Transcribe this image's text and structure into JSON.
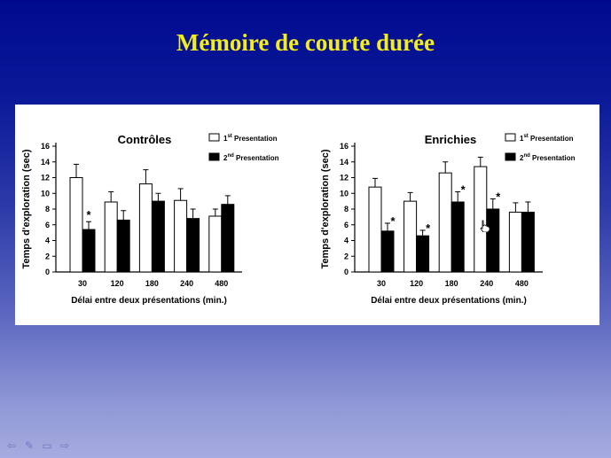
{
  "slide": {
    "title": "Mémoire de courte durée"
  },
  "nav": {
    "icons": [
      "arrow-left-icon",
      "pen-icon",
      "screen-icon",
      "arrow-right-icon"
    ]
  },
  "chart_data": [
    {
      "type": "bar",
      "title": "Contrôles",
      "xlabel": "Délai entre deux présentations (min.)",
      "ylabel": "Temps d'exploration (sec)",
      "ylim": [
        0,
        16
      ],
      "yticks": [
        "0",
        "2",
        "4",
        "6",
        "8",
        "10",
        "12",
        "14",
        "16"
      ],
      "categories": [
        "30",
        "120",
        "180",
        "240",
        "480"
      ],
      "legend_position": "top-right",
      "series": [
        {
          "name_prefix": "1",
          "name_sup": "st",
          "name_suffix": " Presentation",
          "color": "#ffffff",
          "values": [
            12.0,
            8.9,
            11.2,
            9.1,
            7.1
          ],
          "errors": [
            1.7,
            1.3,
            1.8,
            1.5,
            0.9
          ]
        },
        {
          "name_prefix": "2",
          "name_sup": "nd",
          "name_suffix": " Presentation",
          "color": "#000000",
          "values": [
            5.4,
            6.6,
            9.0,
            6.8,
            8.6
          ],
          "errors": [
            1.0,
            1.2,
            1.0,
            1.2,
            1.1
          ]
        }
      ],
      "annotations": [
        {
          "category": "30",
          "text": "*"
        }
      ]
    },
    {
      "type": "bar",
      "title": "Enrichies",
      "xlabel": "Délai entre deux présentations (min.)",
      "ylabel": "Temps d'exploration (sec)",
      "ylim": [
        0,
        16
      ],
      "yticks": [
        "0",
        "2",
        "4",
        "6",
        "8",
        "10",
        "12",
        "14",
        "16"
      ],
      "categories": [
        "30",
        "120",
        "180",
        "240",
        "480"
      ],
      "legend_position": "top-right",
      "series": [
        {
          "name_prefix": "1",
          "name_sup": "st",
          "name_suffix": " Presentation",
          "color": "#ffffff",
          "values": [
            10.8,
            9.0,
            12.6,
            13.4,
            7.6
          ],
          "errors": [
            1.1,
            1.1,
            1.4,
            1.2,
            1.2
          ]
        },
        {
          "name_prefix": "2",
          "name_sup": "nd",
          "name_suffix": " Presentation",
          "color": "#000000",
          "values": [
            5.2,
            4.6,
            8.9,
            8.0,
            7.6
          ],
          "errors": [
            1.0,
            0.7,
            1.3,
            1.3,
            1.3
          ]
        }
      ],
      "annotations": [
        {
          "category": "30",
          "text": "*"
        },
        {
          "category": "120",
          "text": "*"
        },
        {
          "category": "180",
          "text": "*"
        },
        {
          "category": "240",
          "text": "*"
        }
      ]
    }
  ]
}
